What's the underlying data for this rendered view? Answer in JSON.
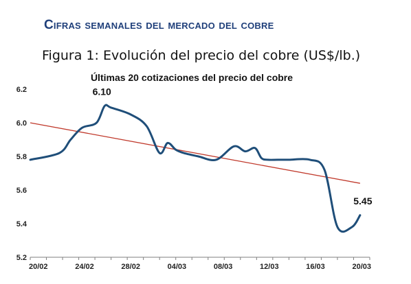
{
  "page": {
    "title": "Cifras semanales del mercado del cobre",
    "figure_title": "Figura 1: Evolución del precio del cobre (US$/lb.)"
  },
  "chart_data": {
    "type": "line",
    "title": "Últimas 20 cotizaciones del precio del cobre",
    "xlabel": "",
    "ylabel": "",
    "ylim": [
      5.2,
      6.2
    ],
    "yticks": [
      "5.2",
      "5.4",
      "5.6",
      "5.8",
      "6.0",
      "6.2"
    ],
    "x_tick_labels": [
      "20/02",
      "24/02",
      "28/02",
      "04/03",
      "08/03",
      "12/03",
      "16/03",
      "20/03"
    ],
    "grid": false,
    "series": [
      {
        "name": "",
        "color": "#1f4e79",
        "x": [
          0,
          1.8,
          2.5,
          3.2,
          4.1,
          4.6,
          5.0,
          6.2,
          7.2,
          8.0,
          8.5,
          9.0,
          9.5,
          10.4,
          11.5,
          12.6,
          13.3,
          13.9,
          14.3,
          14.7,
          15.3,
          16.0,
          17.3,
          18.2,
          19.0,
          19.9,
          20.4
        ],
        "y": [
          5.78,
          5.82,
          5.9,
          5.97,
          6.0,
          6.1,
          6.09,
          6.05,
          5.98,
          5.82,
          5.88,
          5.84,
          5.82,
          5.8,
          5.78,
          5.86,
          5.83,
          5.85,
          5.79,
          5.78,
          5.78,
          5.78,
          5.78,
          5.72,
          5.38,
          5.38,
          5.45
        ],
        "point_labels": [
          {
            "x": 4.6,
            "y": 6.1,
            "text": "6.10"
          },
          {
            "x": 20.4,
            "y": 5.45,
            "text": "5.45"
          }
        ]
      },
      {
        "name": "",
        "type": "trendline",
        "color": "#c0392b",
        "x": [
          0,
          20.4
        ],
        "y": [
          6.0,
          5.64
        ]
      }
    ]
  }
}
